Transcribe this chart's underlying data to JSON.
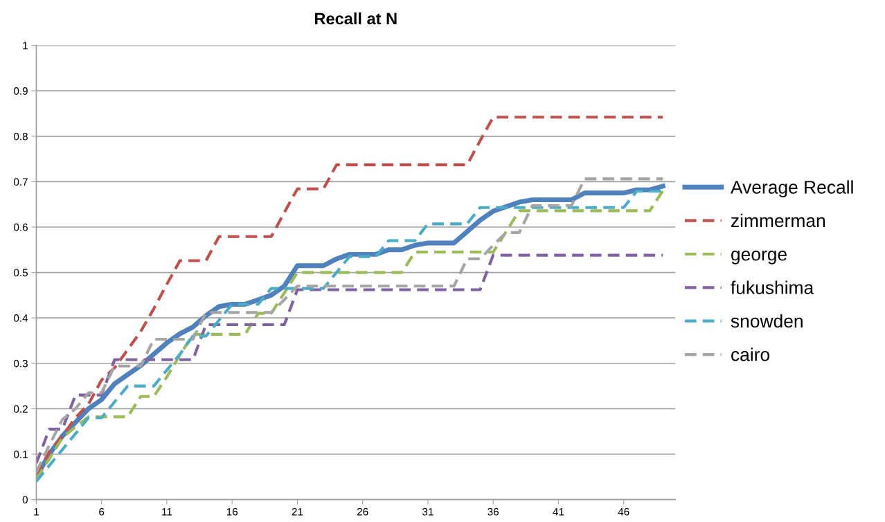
{
  "chart_data": {
    "type": "line",
    "title": "Recall at N",
    "categories": [
      "1",
      null,
      null,
      null,
      null,
      "6",
      null,
      null,
      null,
      null,
      "11",
      null,
      null,
      null,
      null,
      "16",
      null,
      null,
      null,
      null,
      "21",
      null,
      null,
      null,
      null,
      "26",
      null,
      null,
      null,
      null,
      "31",
      null,
      null,
      null,
      null,
      "36",
      null,
      null,
      null,
      null,
      "41",
      null,
      null,
      null,
      null,
      "46",
      null,
      null,
      null
    ],
    "ylim": [
      0,
      1
    ],
    "yticks": [
      0,
      0.1,
      0.2,
      0.3,
      0.4,
      0.5,
      0.6,
      0.7,
      0.8,
      0.9,
      1
    ],
    "grid": "y",
    "legend": "right",
    "marker": "none",
    "series": [
      {
        "name": "Average Recall",
        "color": "#4f81bd",
        "line_style": "solid",
        "values": [
          0.05,
          0.1,
          0.14,
          0.17,
          0.2,
          0.22,
          0.255,
          0.275,
          0.295,
          0.32,
          0.345,
          0.365,
          0.38,
          0.405,
          0.425,
          0.43,
          0.43,
          0.44,
          0.45,
          0.47,
          0.515,
          0.515,
          0.515,
          0.53,
          0.54,
          0.54,
          0.54,
          0.55,
          0.55,
          0.56,
          0.565,
          0.565,
          0.565,
          0.59,
          0.615,
          0.635,
          0.645,
          0.655,
          0.66,
          0.66,
          0.66,
          0.66,
          0.675,
          0.675,
          0.675,
          0.675,
          0.682,
          0.682,
          0.69
        ]
      },
      {
        "name": "zimmerman",
        "color": "#c0504d",
        "line_style": "dashed",
        "values": [
          0.053,
          0.105,
          0.14,
          0.18,
          0.21,
          0.263,
          0.29,
          0.33,
          0.37,
          0.42,
          0.474,
          0.526,
          0.526,
          0.526,
          0.579,
          0.579,
          0.579,
          0.579,
          0.579,
          0.632,
          0.684,
          0.684,
          0.684,
          0.737,
          0.737,
          0.737,
          0.737,
          0.737,
          0.737,
          0.737,
          0.737,
          0.737,
          0.737,
          0.737,
          0.79,
          0.842,
          0.842,
          0.842,
          0.842,
          0.842,
          0.842,
          0.842,
          0.842,
          0.842,
          0.842,
          0.842,
          0.842,
          0.842,
          0.842
        ]
      },
      {
        "name": "george",
        "color": "#9bbb59",
        "line_style": "dashed",
        "values": [
          0.045,
          0.09,
          0.136,
          0.16,
          0.182,
          0.182,
          0.182,
          0.182,
          0.227,
          0.227,
          0.27,
          0.318,
          0.364,
          0.364,
          0.364,
          0.364,
          0.364,
          0.41,
          0.41,
          0.455,
          0.5,
          0.5,
          0.5,
          0.5,
          0.5,
          0.5,
          0.5,
          0.5,
          0.5,
          0.545,
          0.545,
          0.545,
          0.545,
          0.545,
          0.545,
          0.545,
          0.59,
          0.636,
          0.636,
          0.636,
          0.636,
          0.636,
          0.636,
          0.636,
          0.636,
          0.636,
          0.636,
          0.636,
          0.68
        ]
      },
      {
        "name": "fukushima",
        "color": "#8064a2",
        "line_style": "dashed",
        "values": [
          0.08,
          0.155,
          0.155,
          0.23,
          0.23,
          0.23,
          0.308,
          0.308,
          0.308,
          0.308,
          0.308,
          0.308,
          0.308,
          0.385,
          0.385,
          0.385,
          0.385,
          0.385,
          0.385,
          0.385,
          0.462,
          0.462,
          0.462,
          0.462,
          0.462,
          0.462,
          0.462,
          0.462,
          0.462,
          0.462,
          0.462,
          0.462,
          0.462,
          0.462,
          0.462,
          0.538,
          0.538,
          0.538,
          0.538,
          0.538,
          0.538,
          0.538,
          0.538,
          0.538,
          0.538,
          0.538,
          0.538,
          0.538,
          0.538
        ]
      },
      {
        "name": "snowden",
        "color": "#4bacc6",
        "line_style": "dashed",
        "values": [
          0.04,
          0.075,
          0.11,
          0.145,
          0.18,
          0.18,
          0.215,
          0.25,
          0.25,
          0.25,
          0.285,
          0.32,
          0.36,
          0.36,
          0.395,
          0.43,
          0.43,
          0.43,
          0.465,
          0.465,
          0.465,
          0.465,
          0.465,
          0.5,
          0.535,
          0.535,
          0.535,
          0.57,
          0.57,
          0.57,
          0.607,
          0.607,
          0.607,
          0.607,
          0.643,
          0.643,
          0.643,
          0.643,
          0.643,
          0.643,
          0.643,
          0.643,
          0.643,
          0.643,
          0.643,
          0.643,
          0.679,
          0.679,
          0.679
        ]
      },
      {
        "name": "cairo",
        "color": "#a5a5a5",
        "line_style": "dashed",
        "values": [
          0.06,
          0.12,
          0.176,
          0.2,
          0.235,
          0.235,
          0.294,
          0.294,
          0.294,
          0.353,
          0.353,
          0.353,
          0.353,
          0.412,
          0.412,
          0.412,
          0.412,
          0.412,
          0.412,
          0.44,
          0.47,
          0.47,
          0.47,
          0.47,
          0.47,
          0.47,
          0.47,
          0.47,
          0.47,
          0.47,
          0.47,
          0.47,
          0.47,
          0.53,
          0.53,
          0.56,
          0.588,
          0.588,
          0.647,
          0.647,
          0.647,
          0.647,
          0.706,
          0.706,
          0.706,
          0.706,
          0.706,
          0.706,
          0.706
        ]
      }
    ]
  }
}
